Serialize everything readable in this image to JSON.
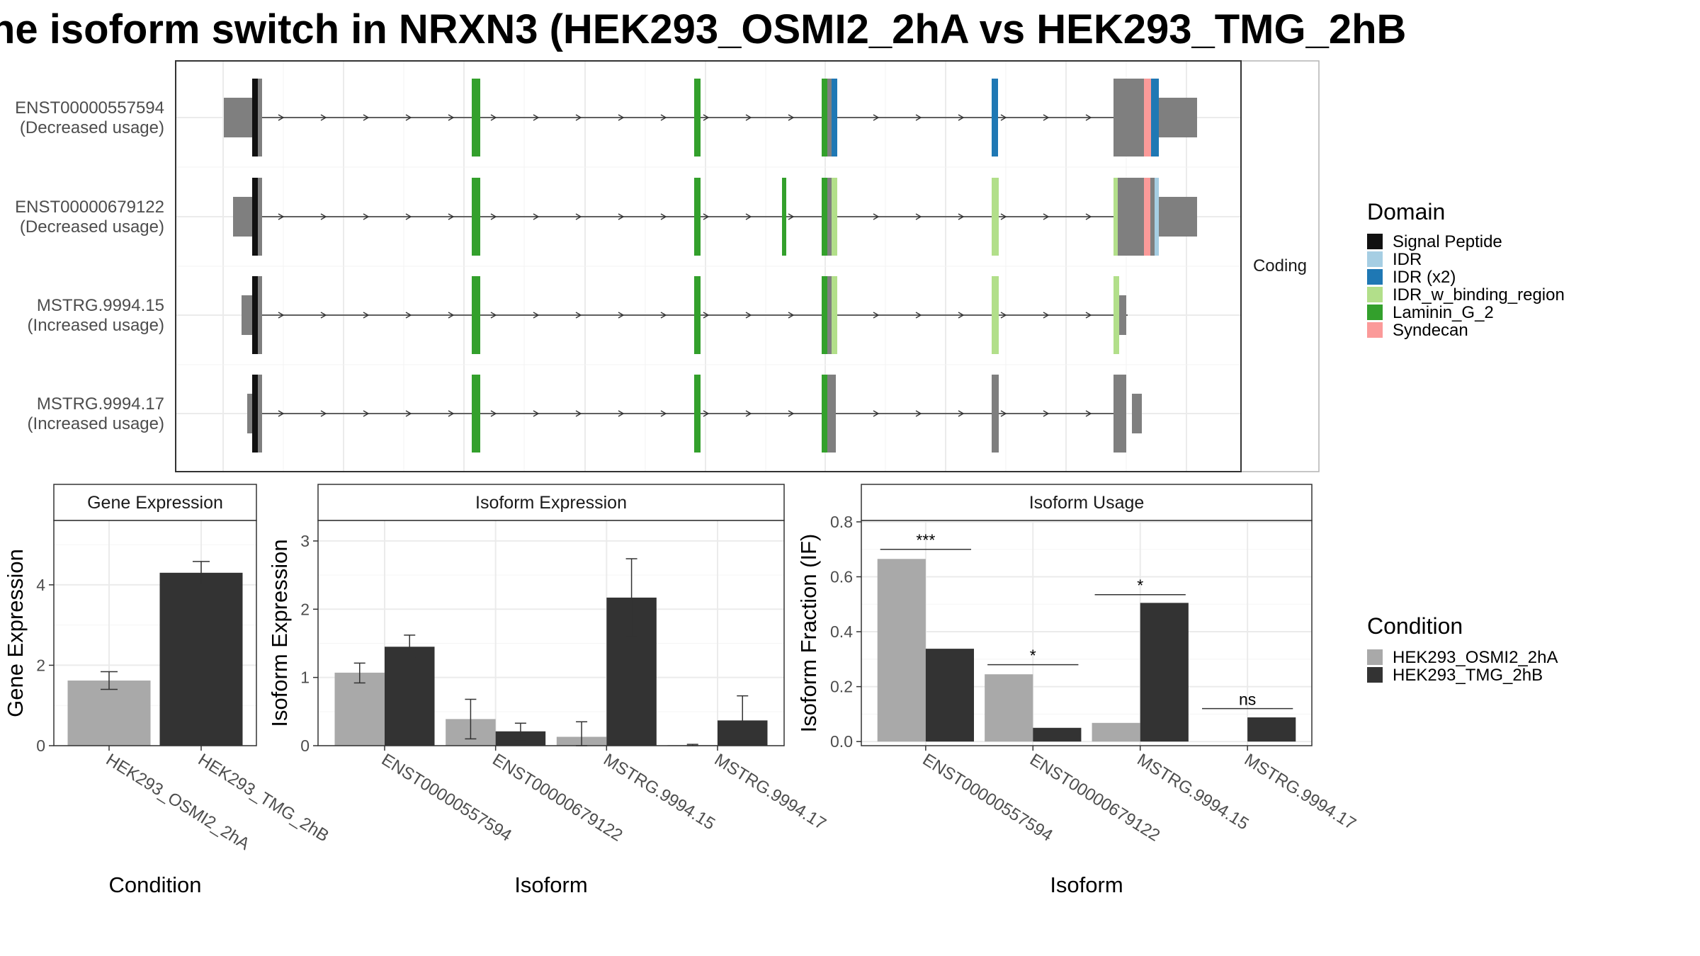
{
  "title": "he isoform switch in NRXN3 (HEK293_OSMI2_2hA vs HEK293_TMG_2hB",
  "colors": {
    "condition_a": "#A9A9A9",
    "condition_b": "#333333",
    "exon": "#7F7F7F",
    "Signal Peptide": "#111111",
    "IDR": "#A6CEE3",
    "IDR (x2)": "#1F78B4",
    "IDR_w_binding_region": "#B2DF8A",
    "Laminin_G_2": "#33A02C",
    "Syndecan": "#FB9A99"
  },
  "chart_data": [
    {
      "type": "gene-structure",
      "panel_strip": "Coding",
      "legend_title": "Domain",
      "legend_entries": [
        "Signal Peptide",
        "IDR",
        "IDR (x2)",
        "IDR_w_binding_region",
        "Laminin_G_2",
        "Syndecan"
      ],
      "transcripts": [
        {
          "name": "ENST00000557594",
          "usage": "(Decreased usage)"
        },
        {
          "name": "ENST00000679122",
          "usage": "(Decreased usage)"
        },
        {
          "name": "MSTRG.9994.15",
          "usage": "(Increased usage)"
        },
        {
          "name": "MSTRG.9994.17",
          "usage": "(Increased usage)"
        }
      ]
    },
    {
      "type": "bar",
      "strip": "Gene Expression",
      "xlabel": "Condition",
      "ylabel": "Gene Expression",
      "ylim": [
        0,
        5.6
      ],
      "yticks": [
        0,
        2,
        4
      ],
      "categories": [
        "HEK293_OSMI2_2hA",
        "HEK293_TMG_2hB"
      ],
      "values": [
        1.62,
        4.3
      ],
      "errors": [
        [
          1.4,
          1.84
        ],
        [
          4.02,
          4.58
        ]
      ]
    },
    {
      "type": "bar",
      "strip": "Isoform Expression",
      "xlabel": "Isoform",
      "ylabel": "Isoform Expression",
      "ylim": [
        0,
        3.3
      ],
      "yticks": [
        0,
        1,
        2,
        3
      ],
      "categories": [
        "ENST00000557594",
        "ENST00000679122",
        "MSTRG.9994.15",
        "MSTRG.9994.17"
      ],
      "series": [
        {
          "name": "HEK293_OSMI2_2hA",
          "values": [
            1.07,
            0.39,
            0.13,
            0.01
          ],
          "errors": [
            [
              0.92,
              1.21
            ],
            [
              0.1,
              0.68
            ],
            [
              0.0,
              0.35
            ],
            [
              0.0,
              0.02
            ]
          ]
        },
        {
          "name": "HEK293_TMG_2hB",
          "values": [
            1.45,
            0.21,
            2.17,
            0.37
          ],
          "errors": [
            [
              1.29,
              1.62
            ],
            [
              0.09,
              0.33
            ],
            [
              1.6,
              2.74
            ],
            [
              0.02,
              0.73
            ]
          ]
        }
      ]
    },
    {
      "type": "bar",
      "strip": "Isoform Usage",
      "xlabel": "Isoform",
      "ylabel": "Isoform Fraction (IF)",
      "ylim": [
        -0.015,
        0.805
      ],
      "yticks": [
        0.0,
        0.2,
        0.4,
        0.6,
        0.8
      ],
      "ytick_labels": [
        "0.0",
        "0.2",
        "0.4",
        "0.6",
        "0.8"
      ],
      "categories": [
        "ENST00000557594",
        "ENST00000679122",
        "MSTRG.9994.15",
        "MSTRG.9994.17"
      ],
      "series": [
        {
          "name": "HEK293_OSMI2_2hA",
          "values": [
            0.665,
            0.245,
            0.068,
            0.0
          ]
        },
        {
          "name": "HEK293_TMG_2hB",
          "values": [
            0.338,
            0.05,
            0.505,
            0.088
          ]
        }
      ],
      "significance": [
        {
          "label": "***",
          "y": 0.7
        },
        {
          "label": "*",
          "y": 0.28
        },
        {
          "label": "*",
          "y": 0.535
        },
        {
          "label": "ns",
          "y": 0.12
        }
      ]
    }
  ],
  "condition_legend": {
    "title": "Condition",
    "entries": [
      "HEK293_OSMI2_2hA",
      "HEK293_TMG_2hB"
    ]
  }
}
